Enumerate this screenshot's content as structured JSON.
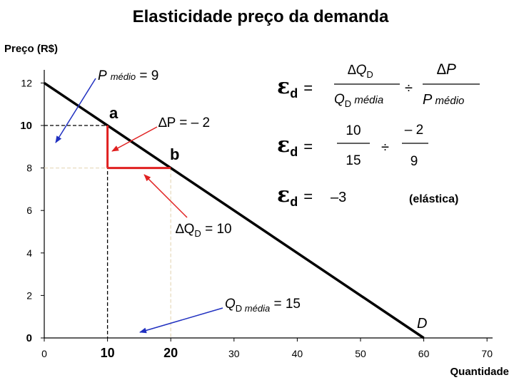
{
  "chart_data": {
    "type": "line",
    "title": "Elasticidade preço da demanda",
    "ylabel": "Preço (R$)",
    "xlabel": "Quantidade",
    "xlim": [
      0,
      70
    ],
    "ylim": [
      0,
      12
    ],
    "x_ticks": [
      {
        "value": 0,
        "label": "0"
      },
      {
        "value": 10,
        "label": "10"
      },
      {
        "value": 20,
        "label": "20"
      },
      {
        "value": 30,
        "label": "30"
      },
      {
        "value": 40,
        "label": "40"
      },
      {
        "value": 50,
        "label": "50"
      },
      {
        "value": 60,
        "label": "60"
      },
      {
        "value": 70,
        "label": "70"
      }
    ],
    "y_ticks": [
      {
        "value": 0,
        "label": "0"
      },
      {
        "value": 2,
        "label": "2"
      },
      {
        "value": 4,
        "label": "4"
      },
      {
        "value": 6,
        "label": "6"
      },
      {
        "value": 8,
        "label": "8"
      },
      {
        "value": 10,
        "label": "10"
      },
      {
        "value": 12,
        "label": "12"
      }
    ],
    "series": [
      {
        "name": "D",
        "x": [
          0,
          60
        ],
        "y": [
          12,
          0
        ]
      }
    ],
    "points": [
      {
        "label": "a",
        "x": 10,
        "y": 10
      },
      {
        "label": "b",
        "x": 20,
        "y": 8
      }
    ],
    "annotations": {
      "p_medio": {
        "pre": "P",
        "sub": "médio",
        "post": " = 9"
      },
      "delta_p": "∆P = – 2",
      "delta_q": {
        "pre": "∆Q",
        "sub": "D",
        "post": " = 10"
      },
      "q_media": {
        "pre": "Q",
        "sub": "D",
        "mid": " média",
        "post": " = 15"
      }
    },
    "formula": {
      "symbol": "ε",
      "sub": "d",
      "eq": "=",
      "row1": {
        "num_pre": "∆Q",
        "num_sub": "D",
        "den_pre": "Q",
        "den_sub": "D",
        "den_post": " média",
        "div": "÷",
        "num2": "∆P",
        "den2_pre": "P",
        "den2_post": " médio"
      },
      "row2": {
        "num": "10",
        "den": "15",
        "div": "÷",
        "num2": "– 2",
        "den2": "9"
      },
      "row3": {
        "value": "–3",
        "note": "(elástica)"
      }
    },
    "colors": {
      "curve": "#000000",
      "highlight": "#e02020",
      "pointer_red": "#e02020",
      "pointer_blue": "#2030c0",
      "guide": "#000000"
    },
    "grid": false
  }
}
